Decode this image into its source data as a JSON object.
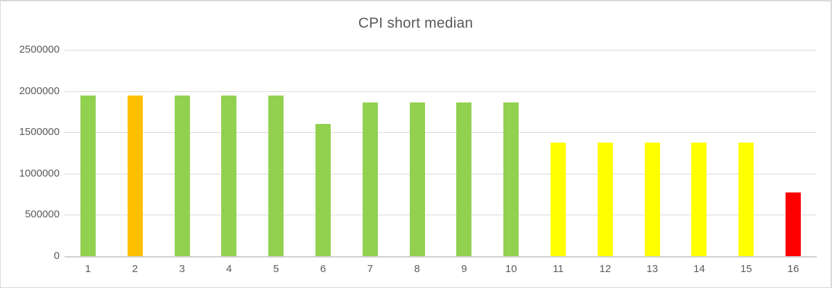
{
  "chart_data": {
    "type": "bar",
    "title": "CPI short median",
    "categories": [
      "1",
      "2",
      "3",
      "4",
      "5",
      "6",
      "7",
      "8",
      "9",
      "10",
      "11",
      "12",
      "13",
      "14",
      "15",
      "16"
    ],
    "values": [
      1950000,
      1950000,
      1950000,
      1950000,
      1950000,
      1600000,
      1860000,
      1860000,
      1860000,
      1860000,
      1375000,
      1375000,
      1375000,
      1375000,
      1375000,
      770000
    ],
    "bar_colors": [
      "#92D050",
      "#FFC000",
      "#92D050",
      "#92D050",
      "#92D050",
      "#92D050",
      "#92D050",
      "#92D050",
      "#92D050",
      "#92D050",
      "#FFFF00",
      "#FFFF00",
      "#FFFF00",
      "#FFFF00",
      "#FFFF00",
      "#FF0000"
    ],
    "xlabel": "",
    "ylabel": "",
    "ylim": [
      0,
      2500000
    ],
    "yticks": [
      0,
      500000,
      1000000,
      1500000,
      2000000,
      2500000
    ],
    "ytick_labels": [
      "0",
      "500000",
      "1000000",
      "1500000",
      "2000000",
      "2500000"
    ],
    "grid": "horizontal",
    "legend": "none",
    "colors": {
      "green": "#92D050",
      "orange": "#FFC000",
      "yellow": "#FFFF00",
      "red": "#FF0000",
      "gridline": "#D9D9D9",
      "axis_text": "#595959",
      "title_text": "#595959",
      "border": "#D9D9D9"
    }
  }
}
